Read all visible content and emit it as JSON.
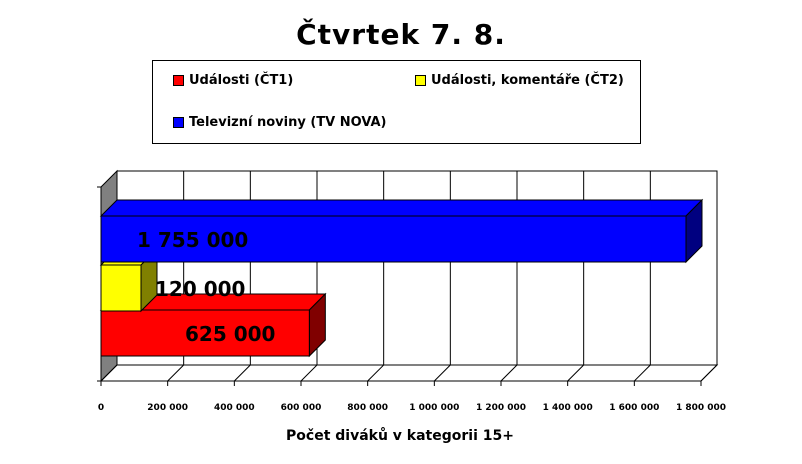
{
  "chart_data": {
    "type": "bar",
    "orientation": "horizontal",
    "title": "Čtvrtek 7. 8.",
    "xlabel": "Počet diváků v kategorii 15+",
    "ylabel": "",
    "xlim": [
      0,
      1800000
    ],
    "xticks": [
      0,
      200000,
      400000,
      600000,
      800000,
      1000000,
      1200000,
      1400000,
      1600000,
      1800000
    ],
    "xtick_labels": [
      "0",
      "200 000",
      "400 000",
      "600 000",
      "800 000",
      "1 000 000",
      "1 200 000",
      "1 400 000",
      "1 600 000",
      "1 800 000"
    ],
    "grid": true,
    "legend_position": "top",
    "series": [
      {
        "name": "Události (ČT1)",
        "value": 625000,
        "label": "625 000",
        "color": "#ff0000",
        "side_color": "#800000"
      },
      {
        "name": "Události, komentáře (ČT2)",
        "value": 120000,
        "label": "120 000",
        "color": "#ffff00",
        "side_color": "#808000"
      },
      {
        "name": "Televizní noviny (TV NOVA)",
        "value": 1755000,
        "label": "1 755 000",
        "color": "#0000ff",
        "side_color": "#000080"
      }
    ]
  }
}
